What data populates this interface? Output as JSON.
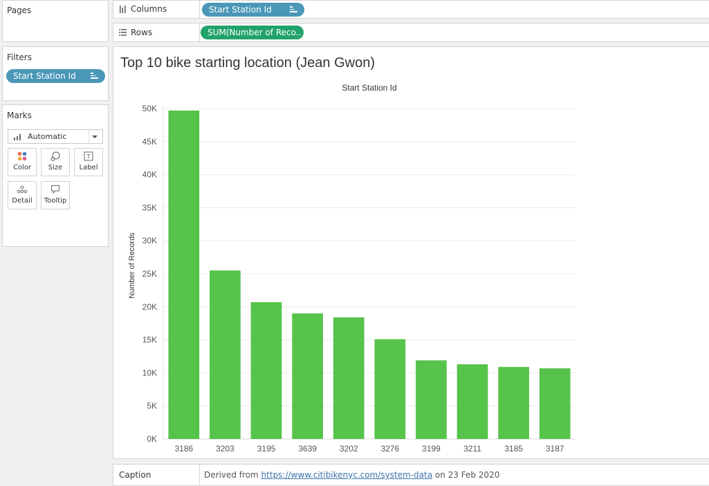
{
  "pages": {
    "title": "Pages"
  },
  "shelves": {
    "columns": {
      "label": "Columns",
      "pill": "Start Station Id"
    },
    "rows": {
      "label": "Rows",
      "pill": "SUM(Number of Reco.."
    }
  },
  "filters": {
    "title": "Filters",
    "pill": "Start Station Id"
  },
  "marks": {
    "title": "Marks",
    "type_selected": "Automatic",
    "cards": [
      {
        "label": "Color",
        "icon": "color-dots-icon"
      },
      {
        "label": "Size",
        "icon": "size-icon"
      },
      {
        "label": "Label",
        "icon": "label-icon"
      },
      {
        "label": "Detail",
        "icon": "detail-icon"
      },
      {
        "label": "Tooltip",
        "icon": "tooltip-icon"
      }
    ]
  },
  "chart": {
    "title": "Top 10 bike starting location (Jean Gwon)"
  },
  "chart_data": {
    "type": "bar",
    "title": "Top 10 bike starting location (Jean Gwon)",
    "xlabel": "Start Station Id",
    "ylabel": "Number of Records",
    "categories": [
      "3186",
      "3203",
      "3195",
      "3639",
      "3202",
      "3276",
      "3199",
      "3211",
      "3185",
      "3187"
    ],
    "values": [
      49700,
      25500,
      20700,
      19000,
      18400,
      15100,
      11900,
      11300,
      10900,
      10700
    ],
    "ylim": [
      0,
      50000
    ],
    "yticks": [
      0,
      5000,
      10000,
      15000,
      20000,
      25000,
      30000,
      35000,
      40000,
      45000,
      50000
    ],
    "ytick_labels": [
      "0K",
      "5K",
      "10K",
      "15K",
      "20K",
      "25K",
      "30K",
      "35K",
      "40K",
      "45K",
      "50K"
    ],
    "bar_color": "#56c34a",
    "grid": true,
    "xlabel_position": "top"
  },
  "caption": {
    "label": "Caption",
    "prefix": "Derived from ",
    "link": "https://www.citibikenyc.com/system-data",
    "suffix": " on 23 Feb 2020"
  },
  "colors": {
    "pill_blue": "#4a97b8",
    "pill_green": "#22a36b",
    "bar": "#56c34a"
  }
}
